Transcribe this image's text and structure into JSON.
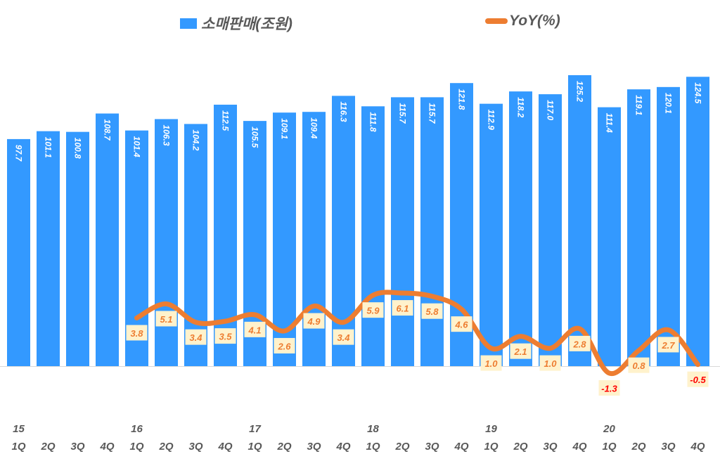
{
  "chart_data": {
    "type": "bar+line",
    "legend": {
      "position": "top",
      "bar_series": "소매판매(조원)",
      "line_series": "YoY(%)"
    },
    "categories": [
      "1Q",
      "2Q",
      "3Q",
      "4Q",
      "1Q",
      "2Q",
      "3Q",
      "4Q",
      "1Q",
      "2Q",
      "3Q",
      "4Q",
      "1Q",
      "2Q",
      "3Q",
      "4Q",
      "1Q",
      "2Q",
      "3Q",
      "4Q",
      "1Q",
      "2Q",
      "3Q",
      "4Q"
    ],
    "year_labels": [
      "15",
      "",
      "",
      "",
      "16",
      "",
      "",
      "",
      "17",
      "",
      "",
      "",
      "18",
      "",
      "",
      "",
      "19",
      "",
      "",
      "",
      "20",
      "",
      "",
      ""
    ],
    "series": [
      {
        "name": "소매판매(조원)",
        "type": "bar",
        "color": "#3399ff",
        "values": [
          97.7,
          101.1,
          100.8,
          108.7,
          101.4,
          106.3,
          104.2,
          112.5,
          105.5,
          109.1,
          109.4,
          116.3,
          111.8,
          115.7,
          115.7,
          121.8,
          112.9,
          118.2,
          117.0,
          125.2,
          111.4,
          119.1,
          120.1,
          124.5
        ]
      },
      {
        "name": "YoY(%)",
        "type": "line",
        "color": "#ed7d31",
        "axis": "secondary",
        "values": [
          null,
          null,
          null,
          null,
          3.8,
          5.1,
          3.4,
          3.5,
          4.1,
          2.6,
          4.9,
          3.4,
          5.9,
          6.1,
          5.8,
          4.6,
          1.0,
          2.1,
          1.0,
          2.8,
          -1.3,
          0.8,
          2.7,
          -0.5
        ]
      }
    ],
    "data_label_colors": {
      "bar": "#ffffff",
      "line_positive": "#ed7d31",
      "line_negative": "#ff0000",
      "line_label_bg": "#fff2cc"
    },
    "grid": false
  }
}
